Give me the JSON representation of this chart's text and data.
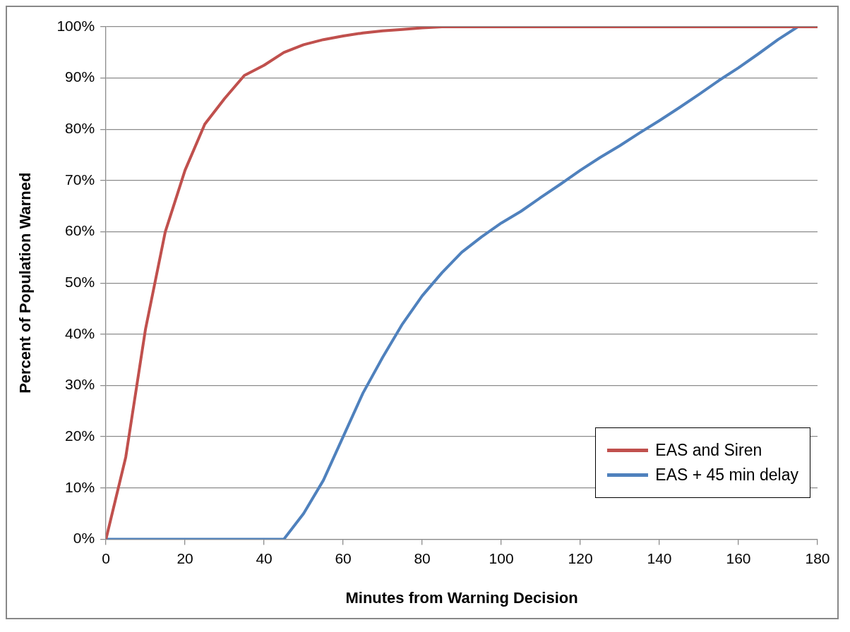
{
  "chart_data": {
    "type": "line",
    "xlabel": "Minutes from Warning Decision",
    "ylabel": "Percent of Population Warned",
    "x": [
      0,
      5,
      10,
      15,
      20,
      25,
      30,
      35,
      40,
      45,
      50,
      55,
      60,
      65,
      70,
      75,
      80,
      85,
      90,
      95,
      100,
      105,
      110,
      115,
      120,
      125,
      130,
      135,
      140,
      145,
      150,
      155,
      160,
      165,
      170,
      175,
      180
    ],
    "series": [
      {
        "name": "EAS and Siren",
        "color": "#c0504d",
        "values": [
          0,
          16,
          41,
          60,
          72,
          81,
          86,
          90.5,
          92.5,
          95,
          96.5,
          97.5,
          98.2,
          98.8,
          99.2,
          99.5,
          99.8,
          100,
          100,
          100,
          100,
          100,
          100,
          100,
          100,
          100,
          100,
          100,
          100,
          100,
          100,
          100,
          100,
          100,
          100,
          100,
          100
        ]
      },
      {
        "name": "EAS + 45 min delay",
        "color": "#4f81bd",
        "values": [
          0,
          0,
          0,
          0,
          0,
          0,
          0,
          0,
          0,
          0,
          5,
          11.5,
          20,
          28.5,
          35.5,
          42,
          47.5,
          52,
          56,
          59,
          61.7,
          64,
          66.7,
          69.3,
          72,
          74.5,
          76.8,
          79.3,
          81.7,
          84.2,
          86.8,
          89.5,
          92,
          94.7,
          97.5,
          100,
          100
        ]
      }
    ],
    "xlim": [
      0,
      180
    ],
    "xticks": [
      0,
      20,
      40,
      60,
      80,
      100,
      120,
      140,
      160,
      180
    ],
    "ylim": [
      0,
      100
    ],
    "yticks": [
      {
        "value": 0,
        "label": "0%"
      },
      {
        "value": 10,
        "label": "10%"
      },
      {
        "value": 20,
        "label": "20%"
      },
      {
        "value": 30,
        "label": "30%"
      },
      {
        "value": 40,
        "label": "40%"
      },
      {
        "value": 50,
        "label": "50%"
      },
      {
        "value": 60,
        "label": "60%"
      },
      {
        "value": 70,
        "label": "70%"
      },
      {
        "value": 80,
        "label": "80%"
      },
      {
        "value": 90,
        "label": "90%"
      },
      {
        "value": 100,
        "label": "100%"
      }
    ],
    "grid": "y",
    "legend": "bottom right",
    "marker": "none",
    "line_style": "solid"
  }
}
